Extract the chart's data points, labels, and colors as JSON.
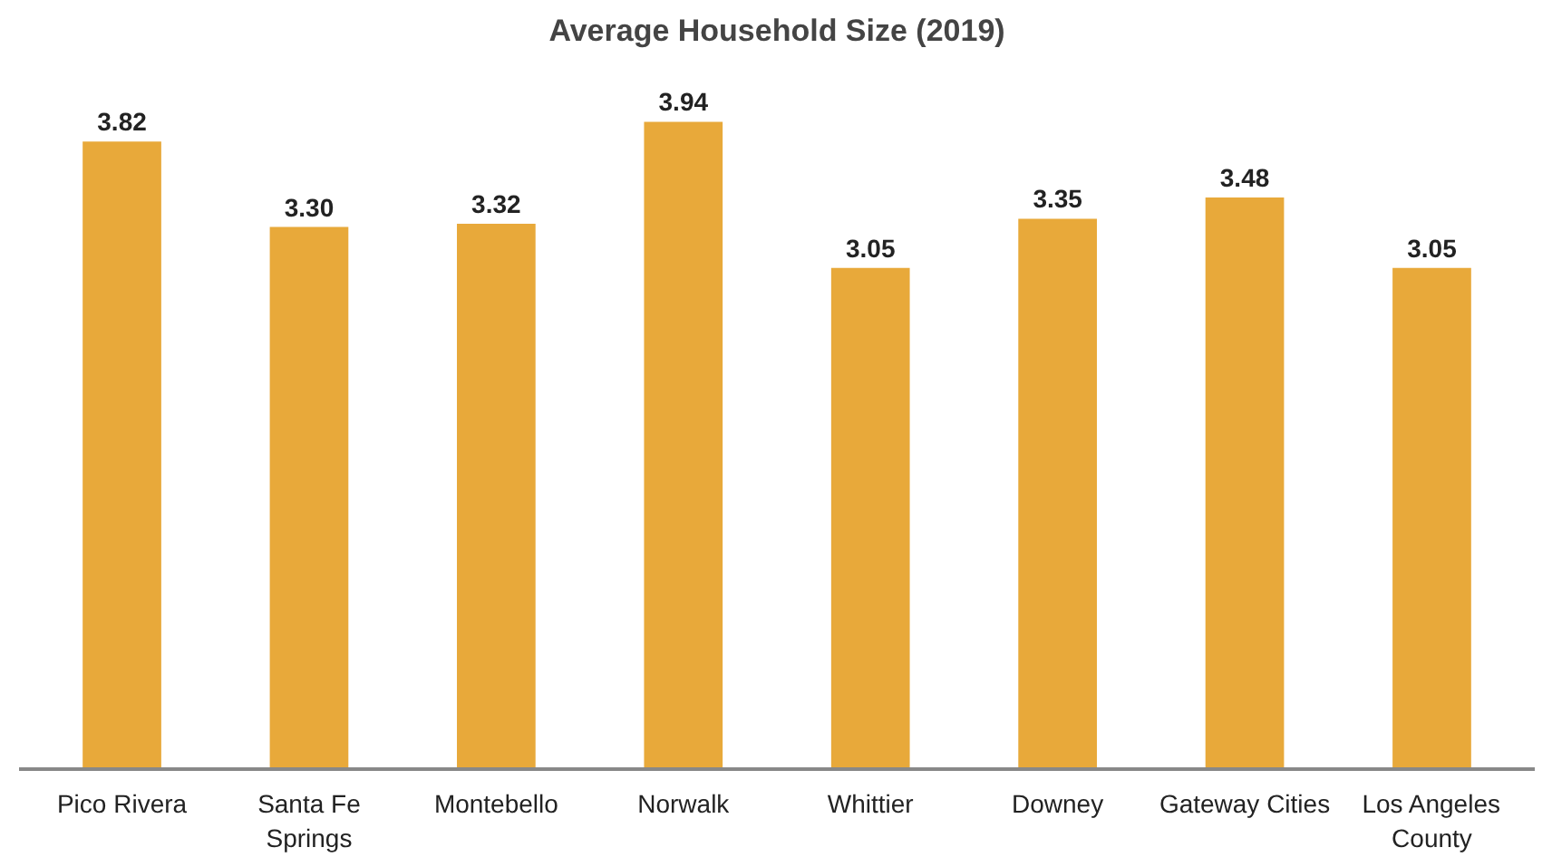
{
  "chart_data": {
    "type": "bar",
    "title": "Average Household Size (2019)",
    "categories": [
      "Pico Rivera",
      "Santa Fe\nSprings",
      "Montebello",
      "Norwalk",
      "Whittier",
      "Downey",
      "Gateway Cities",
      "Los Angeles\nCounty"
    ],
    "values": [
      3.82,
      3.3,
      3.32,
      3.94,
      3.05,
      3.35,
      3.48,
      3.05
    ],
    "value_labels": [
      "3.82",
      "3.30",
      "3.32",
      "3.94",
      "3.05",
      "3.35",
      "3.48",
      "3.05"
    ],
    "color": "#e8a93a",
    "tick_labels": "x"
  }
}
